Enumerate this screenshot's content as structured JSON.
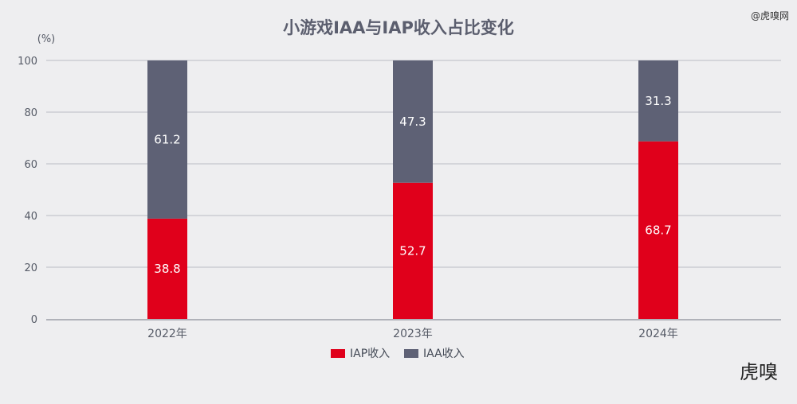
{
  "watermark": "@虎嗅网",
  "logo_text": "虎嗅",
  "chart_data": {
    "type": "bar",
    "stacked": true,
    "title": "小游戏IAA与IAP收入占比变化",
    "ylabel": "(%)",
    "xlabel": "",
    "ylim": [
      0,
      100
    ],
    "yticks": [
      "0",
      "20",
      "40",
      "60",
      "80",
      "100"
    ],
    "categories": [
      "2022年",
      "2023年",
      "2024年"
    ],
    "series": [
      {
        "name": "IAP收入",
        "color": "#e0001b",
        "values": [
          38.8,
          52.7,
          68.7
        ]
      },
      {
        "name": "IAA收入",
        "color": "#5e6175",
        "values": [
          61.2,
          47.3,
          31.3
        ]
      }
    ],
    "grid": true,
    "legend": "bottom-center"
  }
}
